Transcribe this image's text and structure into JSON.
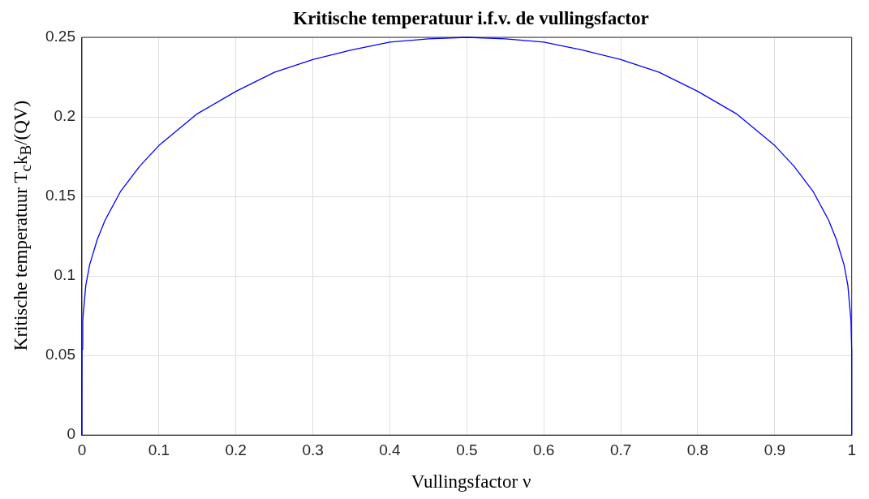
{
  "chart_data": {
    "type": "line",
    "title": "Kritische temperatuur i.f.v. de vullingsfactor",
    "xlabel": "Vullingsfactor ν",
    "ylabel": "Kritische temperatuur T$_{c}$k$_{B}$/(QV)",
    "x": [
      0,
      0.0001,
      0.001,
      0.005,
      0.01,
      0.02,
      0.03,
      0.05,
      0.075,
      0.1,
      0.15,
      0.2,
      0.25,
      0.3,
      0.35,
      0.4,
      0.45,
      0.5,
      0.55,
      0.6,
      0.65,
      0.7,
      0.75,
      0.8,
      0.85,
      0.9,
      0.925,
      0.95,
      0.97,
      0.98,
      0.99,
      0.995,
      0.999,
      0.9999,
      1
    ],
    "series": [
      {
        "color": "#0000ff",
        "values": [
          0,
          0.054,
          0.072,
          0.094,
          0.107,
          0.123,
          0.135,
          0.153,
          0.169,
          0.182,
          0.202,
          0.216,
          0.228,
          0.236,
          0.242,
          0.247,
          0.249,
          0.25,
          0.249,
          0.247,
          0.242,
          0.236,
          0.228,
          0.216,
          0.202,
          0.182,
          0.169,
          0.153,
          0.135,
          0.123,
          0.107,
          0.094,
          0.072,
          0.054,
          0
        ]
      }
    ],
    "xlim": [
      0,
      1
    ],
    "xticks": [
      0,
      0.1,
      0.2,
      0.3,
      0.4,
      0.5,
      0.6,
      0.7,
      0.8,
      0.9,
      1
    ],
    "ylim": [
      0,
      0.25
    ],
    "yticks": [
      0,
      0.05,
      0.1,
      0.15,
      0.2,
      0.25
    ],
    "grid": true,
    "legend": false,
    "marker": "none",
    "line_style": "solid"
  }
}
